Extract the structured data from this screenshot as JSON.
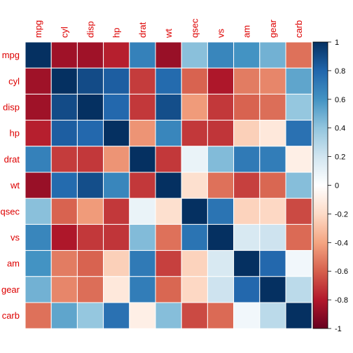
{
  "chart_data": {
    "type": "heatmap",
    "variables": [
      "mpg",
      "cyl",
      "disp",
      "hp",
      "drat",
      "wt",
      "qsec",
      "vs",
      "am",
      "gear",
      "carb"
    ],
    "matrix": [
      [
        1.0,
        -0.85,
        -0.85,
        -0.78,
        0.68,
        -0.87,
        0.42,
        0.66,
        0.6,
        0.48,
        -0.55
      ],
      [
        -0.85,
        1.0,
        0.9,
        0.83,
        -0.7,
        0.78,
        -0.59,
        -0.81,
        -0.52,
        -0.49,
        0.53
      ],
      [
        -0.85,
        0.9,
        1.0,
        0.79,
        -0.71,
        0.89,
        -0.43,
        -0.71,
        -0.59,
        -0.56,
        0.39
      ],
      [
        -0.78,
        0.83,
        0.79,
        1.0,
        -0.45,
        0.66,
        -0.71,
        -0.72,
        -0.24,
        -0.13,
        0.75
      ],
      [
        0.68,
        -0.7,
        -0.71,
        -0.45,
        1.0,
        -0.71,
        0.09,
        0.44,
        0.71,
        0.7,
        -0.09
      ],
      [
        -0.87,
        0.78,
        0.89,
        0.66,
        -0.71,
        1.0,
        -0.17,
        -0.55,
        -0.69,
        -0.58,
        0.43
      ],
      [
        0.42,
        -0.59,
        -0.43,
        -0.71,
        0.09,
        -0.17,
        1.0,
        0.74,
        -0.23,
        -0.21,
        -0.66
      ],
      [
        0.66,
        -0.81,
        -0.71,
        -0.72,
        0.44,
        -0.55,
        0.74,
        1.0,
        0.17,
        0.21,
        -0.57
      ],
      [
        0.6,
        -0.52,
        -0.59,
        -0.24,
        0.71,
        -0.69,
        -0.23,
        0.17,
        1.0,
        0.79,
        0.06
      ],
      [
        0.48,
        -0.49,
        -0.56,
        -0.13,
        0.7,
        -0.58,
        -0.21,
        0.21,
        0.79,
        1.0,
        0.27
      ],
      [
        -0.55,
        0.53,
        0.39,
        0.75,
        -0.09,
        0.43,
        -0.66,
        -0.57,
        0.06,
        0.27,
        1.0
      ]
    ],
    "color_scale": {
      "min": -1,
      "max": 1,
      "stops": [
        {
          "v": -1.0,
          "color": "#67001F"
        },
        {
          "v": -0.8,
          "color": "#B2182B"
        },
        {
          "v": -0.6,
          "color": "#D6604D"
        },
        {
          "v": -0.4,
          "color": "#F4A582"
        },
        {
          "v": -0.2,
          "color": "#FDDBC7"
        },
        {
          "v": 0.0,
          "color": "#FFFFFF"
        },
        {
          "v": 0.2,
          "color": "#D1E5F0"
        },
        {
          "v": 0.4,
          "color": "#92C5DE"
        },
        {
          "v": 0.6,
          "color": "#4393C3"
        },
        {
          "v": 0.8,
          "color": "#2166AC"
        },
        {
          "v": 1.0,
          "color": "#053061"
        }
      ],
      "tick_labels": [
        "-1",
        "-0.8",
        "-0.6",
        "-0.4",
        "-0.2",
        "0",
        "0.2",
        "0.4",
        "0.6",
        "0.8",
        "1"
      ]
    },
    "label_color": "#DD0000",
    "grid_color": "#FFFFFF",
    "legend_placement": "right"
  }
}
